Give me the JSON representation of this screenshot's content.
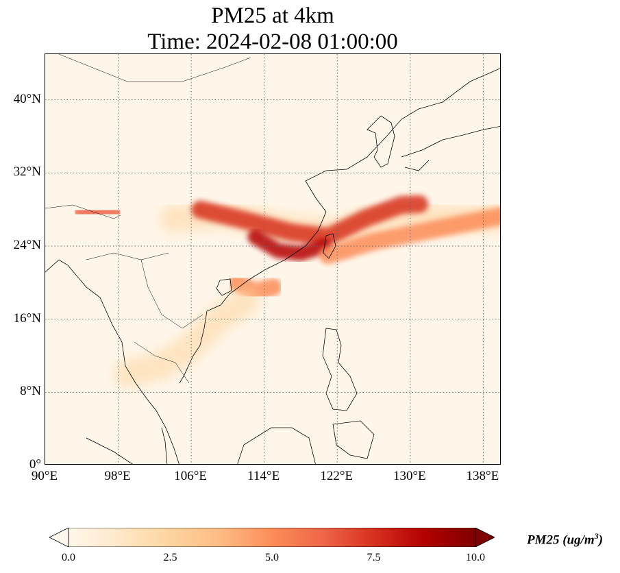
{
  "title": {
    "line1": "PM25 at 4km",
    "line2": "Time: 2024-02-08 01:00:00"
  },
  "map": {
    "extent": {
      "lon_min": 90,
      "lon_max": 140,
      "lat_min": 0,
      "lat_max": 45
    },
    "projection": "PlateCarree",
    "gridlines": "dotted",
    "lat_ticks": [
      {
        "value": 0,
        "label": "0°"
      },
      {
        "value": 8,
        "label": "8°N"
      },
      {
        "value": 16,
        "label": "16°N"
      },
      {
        "value": 24,
        "label": "24°N"
      },
      {
        "value": 32,
        "label": "32°N"
      },
      {
        "value": 40,
        "label": "40°N"
      }
    ],
    "lon_ticks": [
      {
        "value": 90,
        "label": "90°E"
      },
      {
        "value": 98,
        "label": "98°E"
      },
      {
        "value": 106,
        "label": "106°E"
      },
      {
        "value": 114,
        "label": "114°E"
      },
      {
        "value": 122,
        "label": "122°E"
      },
      {
        "value": 130,
        "label": "130°E"
      },
      {
        "value": 138,
        "label": "138°E"
      }
    ]
  },
  "colorbar": {
    "colormap": "OrRd",
    "vmin": 0.0,
    "vmax": 10.0,
    "extend": "both",
    "ticks": [
      "0.0",
      "2.5",
      "5.0",
      "7.5",
      "10.0"
    ],
    "label_main": "PM25 (ug/m",
    "label_sup": "3",
    "label_close": ")"
  },
  "plumes": [
    {
      "name": "main-band",
      "level": 7.5,
      "points": [
        [
          107,
          28
        ],
        [
          112,
          26.8
        ],
        [
          117,
          25.5
        ],
        [
          121,
          25
        ],
        [
          125,
          27
        ],
        [
          129,
          28.5
        ],
        [
          131,
          28.6
        ]
      ]
    },
    {
      "name": "core-coast",
      "level": 9.0,
      "points": [
        [
          113,
          25
        ],
        [
          115.5,
          23.5
        ],
        [
          118,
          23.2
        ],
        [
          120.5,
          24
        ]
      ]
    },
    {
      "name": "east-band",
      "level": 5.5,
      "points": [
        [
          121,
          23
        ],
        [
          126,
          24.5
        ],
        [
          131,
          25.5
        ],
        [
          136,
          26.5
        ],
        [
          140,
          27.3
        ]
      ]
    },
    {
      "name": "himalaya-spot",
      "level": 6.5,
      "points": [
        [
          94,
          27.7
        ],
        [
          96,
          27.8
        ],
        [
          97.5,
          27.6
        ]
      ]
    },
    {
      "name": "hainan-east",
      "level": 5.0,
      "points": [
        [
          111,
          20
        ],
        [
          113,
          19
        ],
        [
          115,
          19.5
        ]
      ]
    },
    {
      "name": "indochina-plume",
      "level": 2.0,
      "points": [
        [
          99,
          10
        ],
        [
          103,
          11
        ],
        [
          106,
          13
        ],
        [
          109,
          16
        ],
        [
          112,
          18
        ]
      ]
    },
    {
      "name": "outer-halo",
      "level": 2.5,
      "points": [
        [
          104,
          27
        ],
        [
          110,
          27.5
        ],
        [
          116,
          26
        ],
        [
          122,
          25.5
        ],
        [
          128,
          27.5
        ],
        [
          134,
          27
        ],
        [
          140,
          27
        ]
      ]
    }
  ]
}
